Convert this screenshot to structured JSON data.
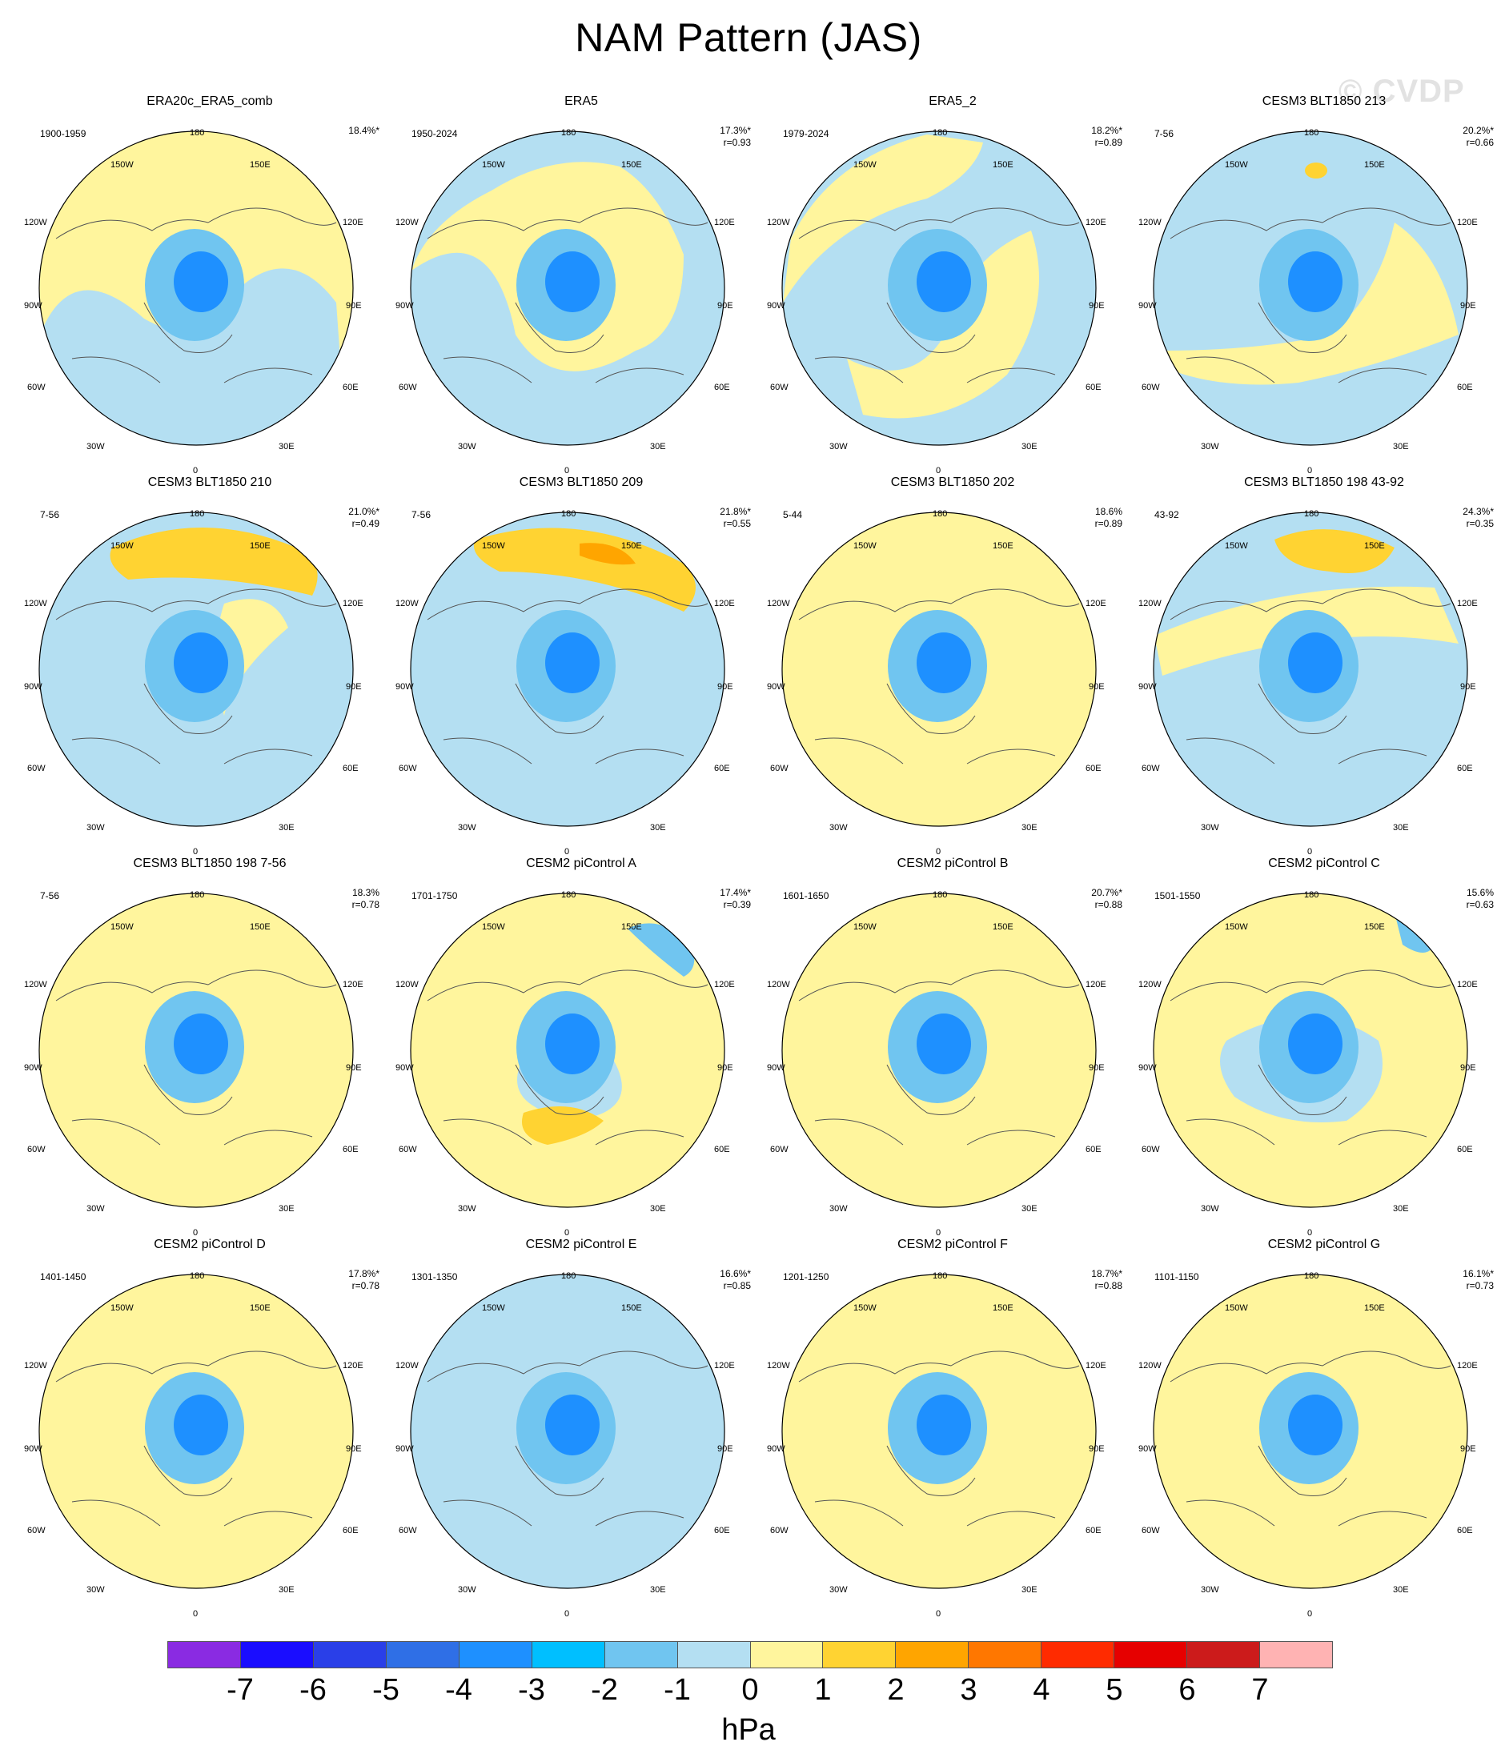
{
  "title": "NAM Pattern (JAS)",
  "watermark": "© CVDP",
  "units": "hPa",
  "colorbar": {
    "colors": [
      "#8a2be2",
      "#1a0dff",
      "#2a3fe8",
      "#2f6fe6",
      "#1e90ff",
      "#00bfff",
      "#70c5f0",
      "#b4dff2",
      "#fff59d",
      "#ffd332",
      "#ffa500",
      "#ff7700",
      "#ff2b00",
      "#e60000",
      "#cc1b1b",
      "#ffb3b3"
    ],
    "tick_labels": [
      "-7",
      "-6",
      "-5",
      "-4",
      "-3",
      "-2",
      "-1",
      "0",
      "1",
      "2",
      "3",
      "4",
      "5",
      "6",
      "7"
    ]
  },
  "lon_labels": {
    "top": "180",
    "bottom": "0",
    "upper_left": "150W",
    "upper_right": "150E",
    "left_upper": "120W",
    "right_upper": "120E",
    "left": "90W",
    "right": "90E",
    "left_lower": "60W",
    "right_lower": "60E",
    "lower_left": "30W",
    "lower_right": "30E"
  },
  "panels": [
    {
      "title": "ERA20c_ERA5_comb",
      "years": "1900-1959",
      "pct": "18.4%*",
      "corr": ""
    },
    {
      "title": "ERA5",
      "years": "1950-2024",
      "pct": "17.3%*",
      "corr": "r=0.93"
    },
    {
      "title": "ERA5_2",
      "years": "1979-2024",
      "pct": "18.2%*",
      "corr": "r=0.89"
    },
    {
      "title": "CESM3 BLT1850 213",
      "years": "7-56",
      "pct": "20.2%*",
      "corr": "r=0.66"
    },
    {
      "title": "CESM3 BLT1850 210",
      "years": "7-56",
      "pct": "21.0%*",
      "corr": "r=0.49"
    },
    {
      "title": "CESM3 BLT1850 209",
      "years": "7-56",
      "pct": "21.8%*",
      "corr": "r=0.55"
    },
    {
      "title": "CESM3 BLT1850 202",
      "years": "5-44",
      "pct": "18.6%",
      "corr": "r=0.89"
    },
    {
      "title": "CESM3 BLT1850 198 43-92",
      "years": "43-92",
      "pct": "24.3%*",
      "corr": "r=0.35"
    },
    {
      "title": "CESM3 BLT1850 198 7-56",
      "years": "7-56",
      "pct": "18.3%",
      "corr": "r=0.78"
    },
    {
      "title": "CESM2 piControl A",
      "years": "1701-1750",
      "pct": "17.4%*",
      "corr": "r=0.39"
    },
    {
      "title": "CESM2 piControl B",
      "years": "1601-1650",
      "pct": "20.7%*",
      "corr": "r=0.88"
    },
    {
      "title": "CESM2 piControl C",
      "years": "1501-1550",
      "pct": "15.6%",
      "corr": "r=0.63"
    },
    {
      "title": "CESM2 piControl D",
      "years": "1401-1450",
      "pct": "17.8%*",
      "corr": "r=0.78"
    },
    {
      "title": "CESM2 piControl E",
      "years": "1301-1350",
      "pct": "16.6%*",
      "corr": "r=0.85"
    },
    {
      "title": "CESM2 piControl F",
      "years": "1201-1250",
      "pct": "18.7%*",
      "corr": "r=0.88"
    },
    {
      "title": "CESM2 piControl G",
      "years": "1101-1150",
      "pct": "16.1%*",
      "corr": "r=0.73"
    }
  ]
}
